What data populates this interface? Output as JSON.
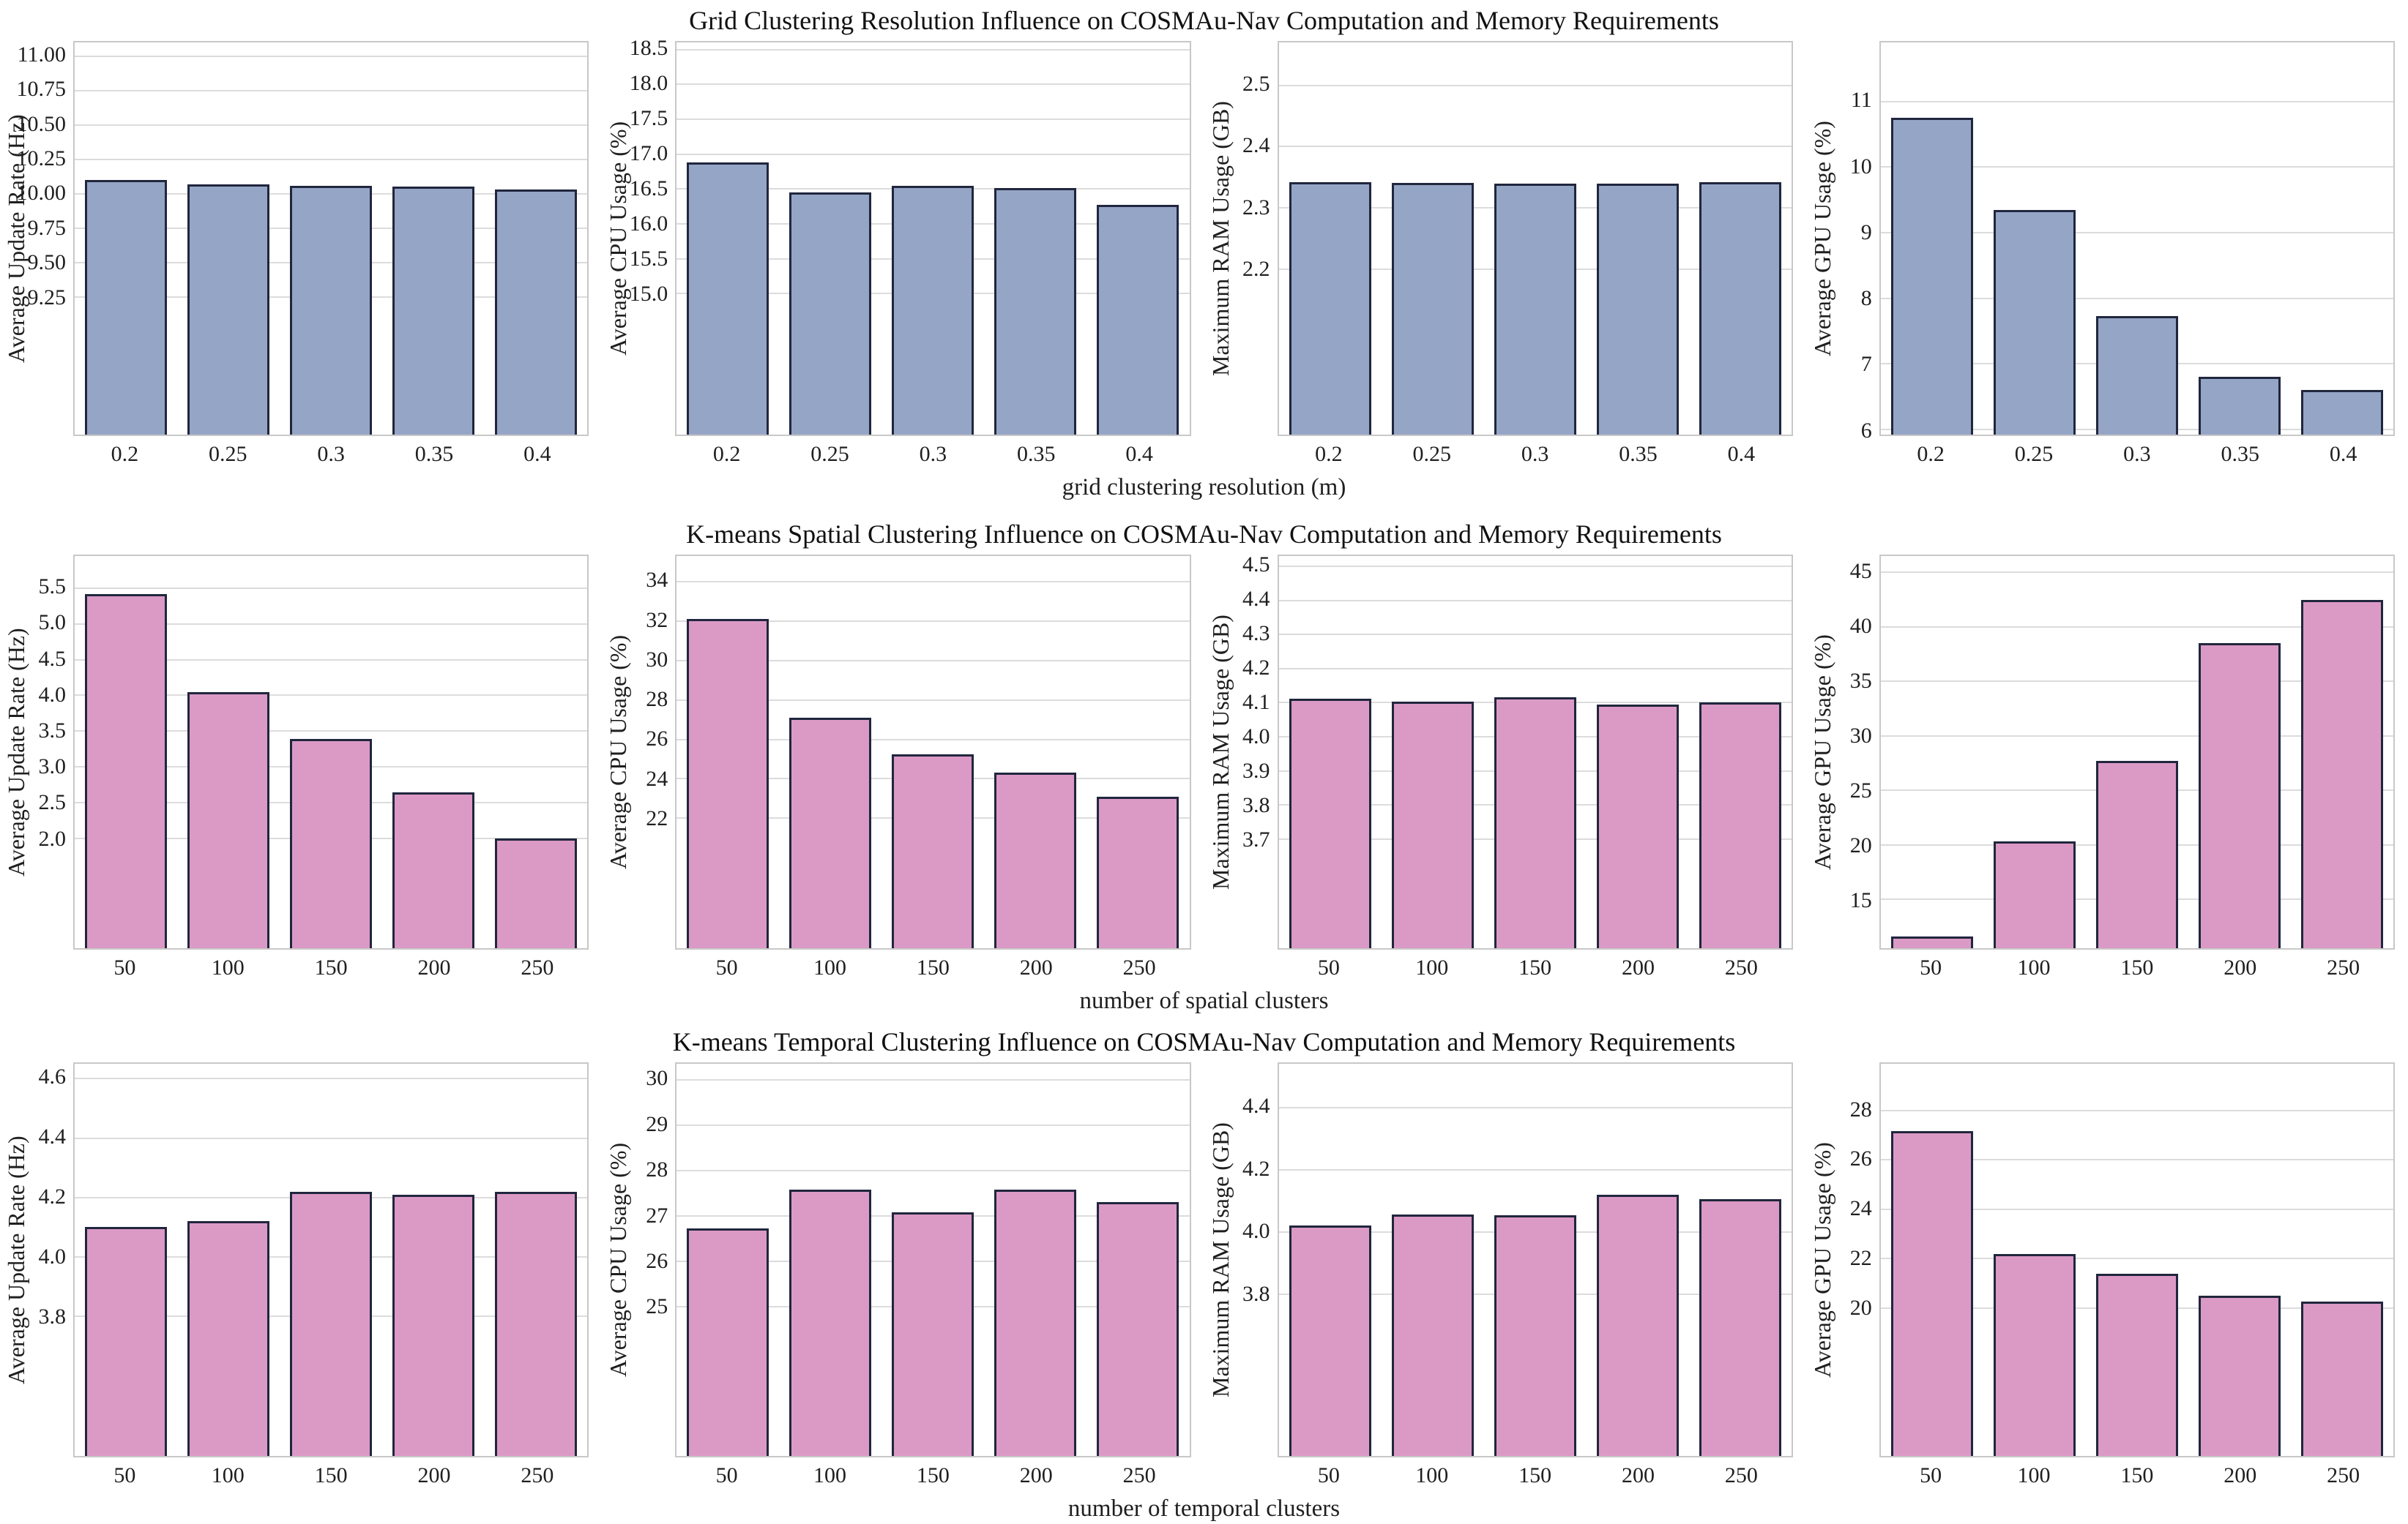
{
  "chart_data": [
    {
      "key": "grid_resolution",
      "type": "bar",
      "title": "Grid Clustering Resolution Influence on COSMAu-Nav Computation and Memory Requirements",
      "xlabel": "grid clustering resolution (m)",
      "categories": [
        "0.2",
        "0.25",
        "0.3",
        "0.35",
        "0.4"
      ],
      "bar_color": "#95a5c6",
      "bar_edge": "#20263d",
      "grid": "horizontal",
      "charts": [
        {
          "ylabel": "Average Update Rate (Hz)",
          "values": [
            10.1,
            10.07,
            10.06,
            10.05,
            10.03
          ],
          "ylim": [
            8.25,
            11.1
          ],
          "yticks": [
            9.25,
            9.5,
            9.75,
            10.0,
            10.25,
            10.5,
            10.75,
            11.0
          ],
          "ytick_labels": [
            "9.25",
            "9.50",
            "9.75",
            "10.00",
            "10.25",
            "10.50",
            "10.75",
            "11.00"
          ]
        },
        {
          "ylabel": "Average CPU Usage (%)",
          "values": [
            16.88,
            16.45,
            16.55,
            16.51,
            16.27
          ],
          "ylim": [
            12.98,
            18.6
          ],
          "yticks": [
            15.0,
            15.5,
            16.0,
            16.5,
            17.0,
            17.5,
            18.0,
            18.5
          ],
          "ytick_labels": [
            "15.0",
            "15.5",
            "16.0",
            "16.5",
            "17.0",
            "17.5",
            "18.0",
            "18.5"
          ]
        },
        {
          "ylabel": "Maximum RAM Usage (GB)",
          "values": [
            2.342,
            2.341,
            2.34,
            2.34,
            2.342
          ],
          "ylim": [
            1.93,
            2.57
          ],
          "yticks": [
            2.2,
            2.3,
            2.4,
            2.5
          ],
          "ytick_labels": [
            "2.2",
            "2.3",
            "2.4",
            "2.5"
          ]
        },
        {
          "ylabel": "Average GPU Usage (%)",
          "values": [
            10.75,
            9.35,
            7.73,
            6.8,
            6.6
          ],
          "ylim": [
            5.92,
            11.9
          ],
          "yticks": [
            6,
            7,
            8,
            9,
            10,
            11
          ],
          "ytick_labels": [
            "6",
            "7",
            "8",
            "9",
            "10",
            "11"
          ]
        }
      ]
    },
    {
      "key": "kmeans_spatial",
      "type": "bar",
      "title": "K-means Spatial Clustering Influence on COSMAu-Nav Computation and Memory Requirements",
      "xlabel": "number of spatial clusters",
      "categories": [
        "50",
        "100",
        "150",
        "200",
        "250"
      ],
      "bar_color": "#db9ac5",
      "bar_edge": "#20263d",
      "grid": "horizontal",
      "charts": [
        {
          "ylabel": "Average Update Rate (Hz)",
          "values": [
            5.42,
            4.05,
            3.39,
            2.64,
            2.0
          ],
          "ylim": [
            0.46,
            5.95
          ],
          "yticks": [
            2.0,
            2.5,
            3.0,
            3.5,
            4.0,
            4.5,
            5.0,
            5.5
          ],
          "ytick_labels": [
            "2.0",
            "2.5",
            "3.0",
            "3.5",
            "4.0",
            "4.5",
            "5.0",
            "5.5"
          ]
        },
        {
          "ylabel": "Average CPU Usage (%)",
          "values": [
            32.1,
            27.1,
            25.25,
            24.3,
            23.1
          ],
          "ylim": [
            15.4,
            35.3
          ],
          "yticks": [
            22,
            24,
            26,
            28,
            30,
            32,
            34
          ],
          "ytick_labels": [
            "22",
            "24",
            "26",
            "28",
            "30",
            "32",
            "34"
          ]
        },
        {
          "ylabel": "Maximum RAM Usage (GB)",
          "values": [
            4.112,
            4.103,
            4.116,
            4.095,
            4.1
          ],
          "ylim": [
            3.38,
            4.53
          ],
          "yticks": [
            3.7,
            3.8,
            3.9,
            4.0,
            4.1,
            4.2,
            4.3,
            4.4,
            4.5
          ],
          "ytick_labels": [
            "3.7",
            "3.8",
            "3.9",
            "4.0",
            "4.1",
            "4.2",
            "4.3",
            "4.4",
            "4.5"
          ]
        },
        {
          "ylabel": "Average GPU Usage (%)",
          "values": [
            11.6,
            20.3,
            27.7,
            38.5,
            42.5
          ],
          "ylim": [
            10.52,
            46.5
          ],
          "yticks": [
            15,
            20,
            25,
            30,
            35,
            40,
            45
          ],
          "ytick_labels": [
            "15",
            "20",
            "25",
            "30",
            "35",
            "40",
            "45"
          ]
        }
      ]
    },
    {
      "key": "kmeans_temporal",
      "type": "bar",
      "title": "K-means Temporal Clustering Influence on COSMAu-Nav Computation and Memory Requirements",
      "xlabel": "number of temporal clusters",
      "categories": [
        "50",
        "100",
        "150",
        "200",
        "250"
      ],
      "bar_color": "#db9ac5",
      "bar_edge": "#20263d",
      "grid": "horizontal",
      "charts": [
        {
          "ylabel": "Average Update Rate (Hz)",
          "values": [
            4.1,
            4.12,
            4.22,
            4.21,
            4.22
          ],
          "ylim": [
            3.33,
            4.65
          ],
          "yticks": [
            3.8,
            4.0,
            4.2,
            4.4,
            4.6
          ],
          "ytick_labels": [
            "3.8",
            "4.0",
            "4.2",
            "4.4",
            "4.6"
          ]
        },
        {
          "ylabel": "Average CPU Usage (%)",
          "values": [
            26.72,
            27.58,
            27.08,
            27.58,
            27.31
          ],
          "ylim": [
            21.7,
            30.36
          ],
          "yticks": [
            25,
            26,
            27,
            28,
            29,
            30
          ],
          "ytick_labels": [
            "25",
            "26",
            "27",
            "28",
            "29",
            "30"
          ]
        },
        {
          "ylabel": "Maximum RAM Usage (GB)",
          "values": [
            4.02,
            4.055,
            4.053,
            4.12,
            4.105
          ],
          "ylim": [
            3.28,
            4.54
          ],
          "yticks": [
            3.8,
            4.0,
            4.2,
            4.4
          ],
          "ytick_labels": [
            "3.8",
            "4.0",
            "4.2",
            "4.4"
          ]
        },
        {
          "ylabel": "Average GPU Usage (%)",
          "values": [
            27.16,
            22.2,
            21.4,
            20.5,
            20.25
          ],
          "ylim": [
            14.0,
            29.9
          ],
          "yticks": [
            20,
            22,
            24,
            26,
            28
          ],
          "ytick_labels": [
            "20",
            "22",
            "24",
            "26",
            "28"
          ]
        }
      ]
    }
  ]
}
